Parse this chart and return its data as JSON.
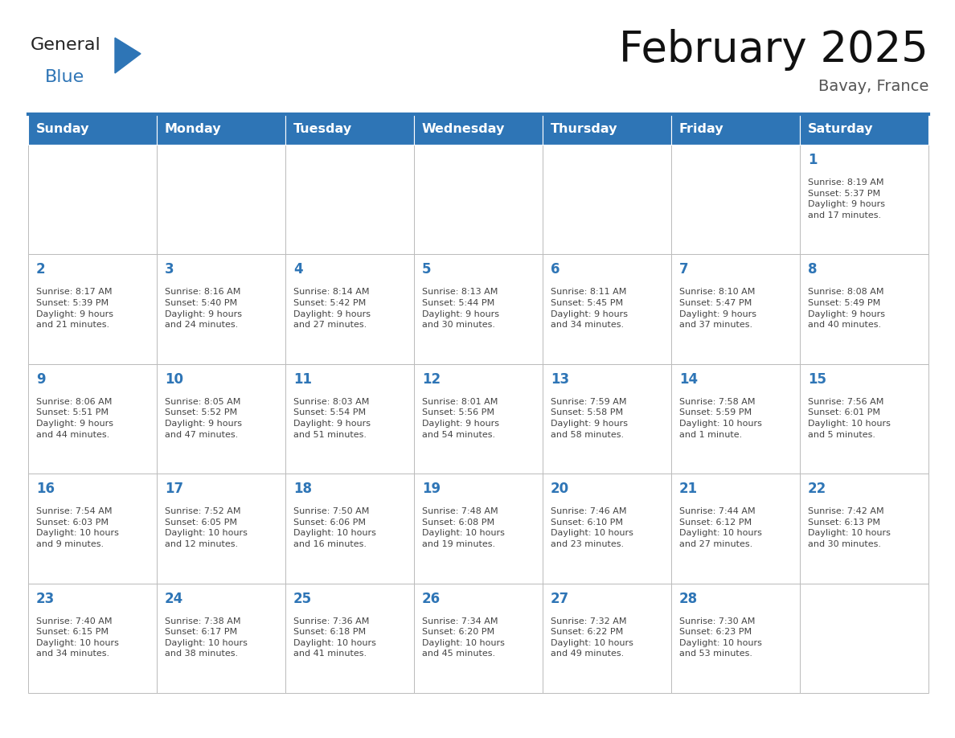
{
  "title": "February 2025",
  "subtitle": "Bavay, France",
  "days_of_week": [
    "Sunday",
    "Monday",
    "Tuesday",
    "Wednesday",
    "Thursday",
    "Friday",
    "Saturday"
  ],
  "header_bg": "#2e75b6",
  "header_text": "#ffffff",
  "cell_bg": "#ffffff",
  "cell_border": "#bbbbbb",
  "day_num_color": "#2e75b6",
  "info_text_color": "#444444",
  "title_color": "#111111",
  "subtitle_color": "#555555",
  "logo_general_color": "#222222",
  "logo_blue_color": "#2e75b6",
  "background_color": "#ffffff",
  "num_rows": 5,
  "num_cols": 7,
  "calendar_data": [
    [
      null,
      null,
      null,
      null,
      null,
      null,
      {
        "day": 1,
        "sunrise": "8:19 AM",
        "sunset": "5:37 PM",
        "daylight_a": "9 hours",
        "daylight_b": "and 17 minutes."
      }
    ],
    [
      {
        "day": 2,
        "sunrise": "8:17 AM",
        "sunset": "5:39 PM",
        "daylight_a": "9 hours",
        "daylight_b": "and 21 minutes."
      },
      {
        "day": 3,
        "sunrise": "8:16 AM",
        "sunset": "5:40 PM",
        "daylight_a": "9 hours",
        "daylight_b": "and 24 minutes."
      },
      {
        "day": 4,
        "sunrise": "8:14 AM",
        "sunset": "5:42 PM",
        "daylight_a": "9 hours",
        "daylight_b": "and 27 minutes."
      },
      {
        "day": 5,
        "sunrise": "8:13 AM",
        "sunset": "5:44 PM",
        "daylight_a": "9 hours",
        "daylight_b": "and 30 minutes."
      },
      {
        "day": 6,
        "sunrise": "8:11 AM",
        "sunset": "5:45 PM",
        "daylight_a": "9 hours",
        "daylight_b": "and 34 minutes."
      },
      {
        "day": 7,
        "sunrise": "8:10 AM",
        "sunset": "5:47 PM",
        "daylight_a": "9 hours",
        "daylight_b": "and 37 minutes."
      },
      {
        "day": 8,
        "sunrise": "8:08 AM",
        "sunset": "5:49 PM",
        "daylight_a": "9 hours",
        "daylight_b": "and 40 minutes."
      }
    ],
    [
      {
        "day": 9,
        "sunrise": "8:06 AM",
        "sunset": "5:51 PM",
        "daylight_a": "9 hours",
        "daylight_b": "and 44 minutes."
      },
      {
        "day": 10,
        "sunrise": "8:05 AM",
        "sunset": "5:52 PM",
        "daylight_a": "9 hours",
        "daylight_b": "and 47 minutes."
      },
      {
        "day": 11,
        "sunrise": "8:03 AM",
        "sunset": "5:54 PM",
        "daylight_a": "9 hours",
        "daylight_b": "and 51 minutes."
      },
      {
        "day": 12,
        "sunrise": "8:01 AM",
        "sunset": "5:56 PM",
        "daylight_a": "9 hours",
        "daylight_b": "and 54 minutes."
      },
      {
        "day": 13,
        "sunrise": "7:59 AM",
        "sunset": "5:58 PM",
        "daylight_a": "9 hours",
        "daylight_b": "and 58 minutes."
      },
      {
        "day": 14,
        "sunrise": "7:58 AM",
        "sunset": "5:59 PM",
        "daylight_a": "10 hours",
        "daylight_b": "and 1 minute."
      },
      {
        "day": 15,
        "sunrise": "7:56 AM",
        "sunset": "6:01 PM",
        "daylight_a": "10 hours",
        "daylight_b": "and 5 minutes."
      }
    ],
    [
      {
        "day": 16,
        "sunrise": "7:54 AM",
        "sunset": "6:03 PM",
        "daylight_a": "10 hours",
        "daylight_b": "and 9 minutes."
      },
      {
        "day": 17,
        "sunrise": "7:52 AM",
        "sunset": "6:05 PM",
        "daylight_a": "10 hours",
        "daylight_b": "and 12 minutes."
      },
      {
        "day": 18,
        "sunrise": "7:50 AM",
        "sunset": "6:06 PM",
        "daylight_a": "10 hours",
        "daylight_b": "and 16 minutes."
      },
      {
        "day": 19,
        "sunrise": "7:48 AM",
        "sunset": "6:08 PM",
        "daylight_a": "10 hours",
        "daylight_b": "and 19 minutes."
      },
      {
        "day": 20,
        "sunrise": "7:46 AM",
        "sunset": "6:10 PM",
        "daylight_a": "10 hours",
        "daylight_b": "and 23 minutes."
      },
      {
        "day": 21,
        "sunrise": "7:44 AM",
        "sunset": "6:12 PM",
        "daylight_a": "10 hours",
        "daylight_b": "and 27 minutes."
      },
      {
        "day": 22,
        "sunrise": "7:42 AM",
        "sunset": "6:13 PM",
        "daylight_a": "10 hours",
        "daylight_b": "and 30 minutes."
      }
    ],
    [
      {
        "day": 23,
        "sunrise": "7:40 AM",
        "sunset": "6:15 PM",
        "daylight_a": "10 hours",
        "daylight_b": "and 34 minutes."
      },
      {
        "day": 24,
        "sunrise": "7:38 AM",
        "sunset": "6:17 PM",
        "daylight_a": "10 hours",
        "daylight_b": "and 38 minutes."
      },
      {
        "day": 25,
        "sunrise": "7:36 AM",
        "sunset": "6:18 PM",
        "daylight_a": "10 hours",
        "daylight_b": "and 41 minutes."
      },
      {
        "day": 26,
        "sunrise": "7:34 AM",
        "sunset": "6:20 PM",
        "daylight_a": "10 hours",
        "daylight_b": "and 45 minutes."
      },
      {
        "day": 27,
        "sunrise": "7:32 AM",
        "sunset": "6:22 PM",
        "daylight_a": "10 hours",
        "daylight_b": "and 49 minutes."
      },
      {
        "day": 28,
        "sunrise": "7:30 AM",
        "sunset": "6:23 PM",
        "daylight_a": "10 hours",
        "daylight_b": "and 53 minutes."
      },
      null
    ]
  ]
}
